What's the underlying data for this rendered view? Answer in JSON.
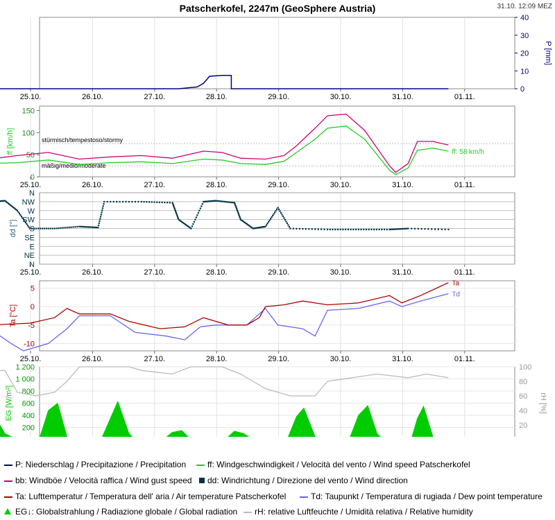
{
  "header": {
    "title": "Patscherkofel, 2247m (GeoSphere Austria)",
    "timestamp": "31.10. 12:09 MEZ"
  },
  "colors": {
    "precip": "#000080",
    "wind": "#22cc22",
    "gust": "#cc0077",
    "dir": "#003344",
    "temp": "#aa0000",
    "dew": "#6666ee",
    "rad": "#00cc00",
    "rh": "#bbbbbb"
  },
  "chart_data": [
    {
      "id": "precip",
      "type": "line",
      "ylabel": "P [mm]",
      "yaxis": "right",
      "ylim": [
        0,
        40
      ],
      "yticks": [
        0,
        10,
        20,
        30,
        40
      ],
      "x_ticks": [
        "25.10.",
        "26.10.",
        "27.10.",
        "28.10.",
        "29.10.",
        "30.10.",
        "31.10.",
        "01.11."
      ],
      "series": [
        {
          "name": "P",
          "points": [
            [
              -0.45,
              0
            ],
            [
              2.6,
              0
            ],
            [
              2.9,
              1
            ],
            [
              3.0,
              3
            ],
            [
              3.1,
              7
            ],
            [
              3.3,
              7.5
            ],
            [
              3.45,
              7.5
            ],
            [
              3.45,
              0
            ],
            [
              6.95,
              0
            ]
          ]
        }
      ]
    },
    {
      "id": "wind",
      "type": "line",
      "ylabel": "ff [km/h]",
      "ylim": [
        0,
        160
      ],
      "yticks": [
        0,
        50,
        100,
        150
      ],
      "annotations": [
        "stürmisch/tempestoso/stormy",
        "mäßig/medio/moderate"
      ],
      "thresholds": [
        75,
        25
      ],
      "current_label": "ff: 58 km/h",
      "series": [
        {
          "name": "ff",
          "points": [
            [
              -0.45,
              30
            ],
            [
              0,
              32
            ],
            [
              0.5,
              38
            ],
            [
              1.0,
              28
            ],
            [
              1.5,
              32
            ],
            [
              2.0,
              34
            ],
            [
              2.5,
              30
            ],
            [
              3.0,
              40
            ],
            [
              3.3,
              38
            ],
            [
              3.6,
              30
            ],
            [
              4.0,
              28
            ],
            [
              4.3,
              35
            ],
            [
              4.5,
              55
            ],
            [
              4.8,
              85
            ],
            [
              5.0,
              110
            ],
            [
              5.3,
              115
            ],
            [
              5.6,
              85
            ],
            [
              5.8,
              50
            ],
            [
              6.0,
              15
            ],
            [
              6.1,
              5
            ],
            [
              6.3,
              20
            ],
            [
              6.45,
              60
            ],
            [
              6.7,
              65
            ],
            [
              6.95,
              58
            ]
          ]
        },
        {
          "name": "bb",
          "points": [
            [
              -0.45,
              40
            ],
            [
              0,
              48
            ],
            [
              0.5,
              55
            ],
            [
              1.0,
              40
            ],
            [
              1.5,
              45
            ],
            [
              2.0,
              48
            ],
            [
              2.5,
              42
            ],
            [
              3.0,
              58
            ],
            [
              3.3,
              55
            ],
            [
              3.6,
              42
            ],
            [
              4.0,
              40
            ],
            [
              4.3,
              48
            ],
            [
              4.5,
              70
            ],
            [
              4.8,
              110
            ],
            [
              5.0,
              138
            ],
            [
              5.3,
              142
            ],
            [
              5.6,
              105
            ],
            [
              5.8,
              65
            ],
            [
              6.0,
              25
            ],
            [
              6.1,
              10
            ],
            [
              6.3,
              30
            ],
            [
              6.45,
              80
            ],
            [
              6.7,
              80
            ],
            [
              6.95,
              72
            ]
          ]
        }
      ]
    },
    {
      "id": "dir",
      "type": "scatter",
      "ylabel": "dd [°]",
      "ycats": [
        "N",
        "NW",
        "W",
        "SW",
        "S",
        "SE",
        "E",
        "NE",
        "N"
      ],
      "series": [
        {
          "name": "dd",
          "points": [
            [
              -0.4,
              315
            ],
            [
              -0.2,
              320
            ],
            [
              0,
              270
            ],
            [
              0.2,
              180
            ],
            [
              0.6,
              180
            ],
            [
              1.0,
              190
            ],
            [
              1.3,
              185
            ],
            [
              1.4,
              315
            ],
            [
              2.0,
              315
            ],
            [
              2.5,
              310
            ],
            [
              2.6,
              225
            ],
            [
              2.8,
              180
            ],
            [
              3.0,
              315
            ],
            [
              3.2,
              320
            ],
            [
              3.5,
              310
            ],
            [
              3.6,
              225
            ],
            [
              3.8,
              180
            ],
            [
              4.0,
              190
            ],
            [
              4.2,
              285
            ],
            [
              4.4,
              180
            ],
            [
              5.0,
              175
            ],
            [
              5.5,
              175
            ],
            [
              6.0,
              175
            ],
            [
              6.3,
              180
            ],
            [
              6.95,
              175
            ]
          ]
        }
      ]
    },
    {
      "id": "temp",
      "type": "line",
      "ylabel": "Ta [°C]",
      "ylim": [
        -12,
        7
      ],
      "yticks": [
        -10,
        -5,
        0,
        5
      ],
      "series_labels": [
        "Ta",
        "Td"
      ],
      "series": [
        {
          "name": "Ta",
          "points": [
            [
              -0.45,
              -5
            ],
            [
              0.2,
              -4.5
            ],
            [
              0.6,
              -3
            ],
            [
              0.8,
              -0.5
            ],
            [
              1.0,
              -2
            ],
            [
              1.5,
              -2
            ],
            [
              1.8,
              -4
            ],
            [
              2.3,
              -6
            ],
            [
              2.7,
              -5.5
            ],
            [
              3.0,
              -3
            ],
            [
              3.2,
              -4
            ],
            [
              3.4,
              -5
            ],
            [
              3.7,
              -5
            ],
            [
              3.9,
              -3
            ],
            [
              4.0,
              0
            ],
            [
              4.3,
              0.5
            ],
            [
              4.6,
              1.5
            ],
            [
              5.0,
              0.5
            ],
            [
              5.5,
              1
            ],
            [
              6.0,
              3
            ],
            [
              6.2,
              1
            ],
            [
              6.5,
              3
            ],
            [
              6.95,
              6.5
            ]
          ]
        },
        {
          "name": "Td",
          "points": [
            [
              -0.45,
              -6
            ],
            [
              -0.1,
              -10
            ],
            [
              0.1,
              -12
            ],
            [
              0.5,
              -10
            ],
            [
              0.8,
              -6
            ],
            [
              1.0,
              -2.5
            ],
            [
              1.5,
              -2.5
            ],
            [
              1.9,
              -7
            ],
            [
              2.4,
              -8
            ],
            [
              2.7,
              -9
            ],
            [
              2.95,
              -5.5
            ],
            [
              3.2,
              -5
            ],
            [
              3.7,
              -5
            ],
            [
              4.0,
              -0.5
            ],
            [
              4.2,
              -5
            ],
            [
              4.6,
              -6
            ],
            [
              4.8,
              -8
            ],
            [
              5.0,
              -1
            ],
            [
              5.5,
              -0.5
            ],
            [
              6.0,
              1.5
            ],
            [
              6.2,
              0
            ],
            [
              6.5,
              1.5
            ],
            [
              6.95,
              3.5
            ]
          ]
        }
      ]
    },
    {
      "id": "rad",
      "type": "area",
      "ylabel": "EG [W/m²]",
      "ylim": [
        0,
        1200
      ],
      "yticks": [
        0,
        200,
        400,
        600,
        800,
        1000,
        1200
      ],
      "ylabel_right": "rH [%]",
      "ylim_right": [
        0,
        100
      ],
      "yticks_right": [
        0,
        20,
        40,
        60,
        80,
        100
      ],
      "series": [
        {
          "name": "EG",
          "points": [
            [
              -0.45,
              0
            ],
            [
              -0.4,
              450
            ],
            [
              -0.2,
              100
            ],
            [
              0,
              0
            ],
            [
              0.35,
              0
            ],
            [
              0.5,
              480
            ],
            [
              0.65,
              600
            ],
            [
              0.8,
              50
            ],
            [
              0.9,
              0
            ],
            [
              1.35,
              0
            ],
            [
              1.5,
              350
            ],
            [
              1.62,
              630
            ],
            [
              1.8,
              100
            ],
            [
              1.9,
              0
            ],
            [
              2.35,
              0
            ],
            [
              2.5,
              120
            ],
            [
              2.65,
              150
            ],
            [
              2.8,
              0
            ],
            [
              3.35,
              0
            ],
            [
              3.5,
              140
            ],
            [
              3.65,
              100
            ],
            [
              3.8,
              0
            ],
            [
              4.35,
              0
            ],
            [
              4.5,
              380
            ],
            [
              4.62,
              520
            ],
            [
              4.8,
              50
            ],
            [
              4.9,
              0
            ],
            [
              5.35,
              0
            ],
            [
              5.5,
              400
            ],
            [
              5.65,
              560
            ],
            [
              5.8,
              100
            ],
            [
              5.9,
              0
            ],
            [
              6.35,
              0
            ],
            [
              6.45,
              350
            ],
            [
              6.55,
              550
            ],
            [
              6.7,
              50
            ],
            [
              6.8,
              0
            ],
            [
              6.95,
              0
            ]
          ]
        },
        {
          "name": "rH",
          "points": [
            [
              -0.45,
              95
            ],
            [
              -0.2,
              95
            ],
            [
              0,
              65
            ],
            [
              0.3,
              60
            ],
            [
              0.6,
              65
            ],
            [
              0.8,
              80
            ],
            [
              1.0,
              100
            ],
            [
              1.6,
              100
            ],
            [
              1.8,
              100
            ],
            [
              2.0,
              95
            ],
            [
              2.5,
              90
            ],
            [
              2.8,
              100
            ],
            [
              3.3,
              100
            ],
            [
              3.6,
              90
            ],
            [
              3.8,
              80
            ],
            [
              4.0,
              70
            ],
            [
              4.4,
              60
            ],
            [
              4.8,
              60
            ],
            [
              5.0,
              80
            ],
            [
              5.4,
              85
            ],
            [
              5.8,
              90
            ],
            [
              6.3,
              85
            ],
            [
              6.6,
              90
            ],
            [
              6.95,
              85
            ]
          ]
        }
      ]
    }
  ],
  "legend": [
    {
      "key": "precip",
      "style": "line",
      "label": "P: Niederschlag / Precipitazione / Precipitation"
    },
    {
      "key": "wind",
      "style": "line",
      "label": "ff: Windgeschwindigkeit / Velocità del vento / Wind speed  Patscherkofel"
    },
    {
      "key": "gust",
      "style": "line",
      "label": "bb: Windböe / Velocità raffica / Wind gust speed"
    },
    {
      "key": "dir",
      "style": "square",
      "label": "dd: Windrichtung / Direzione del vento / Wind direction"
    },
    {
      "key": "temp",
      "style": "line",
      "label": "Ta: Lufttemperatur / Temperatura dell' aria / Air temperature  Patscherkofel"
    },
    {
      "key": "dew",
      "style": "line",
      "label": "Td: Taupunkt / Temperatura di rugiada / Dew point temperature"
    },
    {
      "key": "rad",
      "style": "area",
      "label": "EG↓: Globalstrahlung / Radiazione globale / Global radiation"
    },
    {
      "key": "rh",
      "style": "line",
      "label": "rH: relative Luftfeuchte / Umidità relativa / Relative humidity"
    }
  ]
}
